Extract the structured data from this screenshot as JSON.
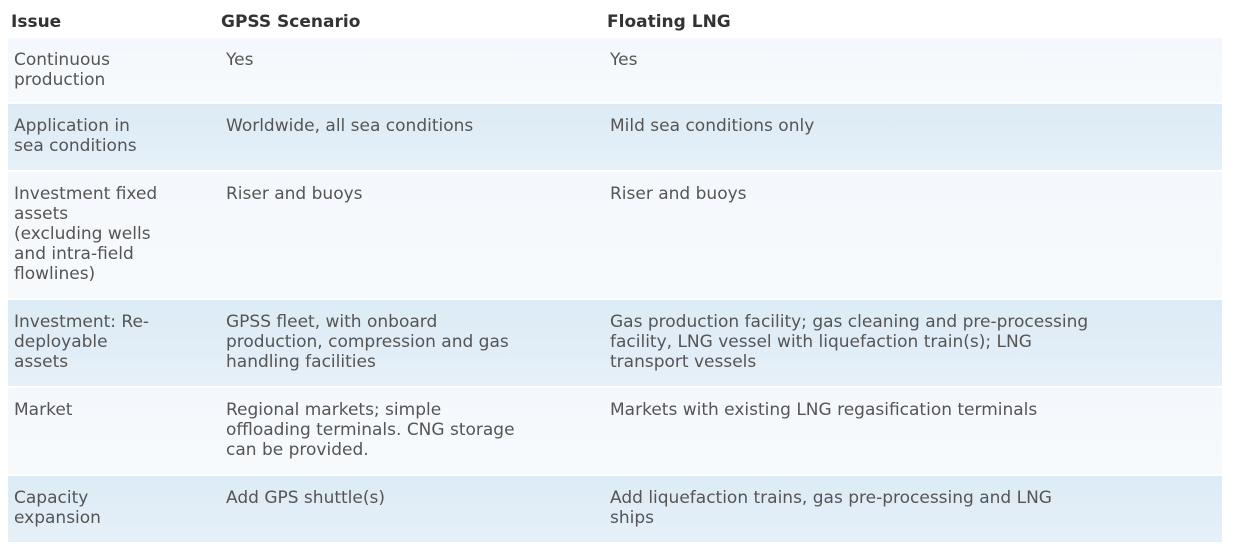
{
  "table": {
    "headers": {
      "issue": "Issue",
      "gpss": "GPSS Scenario",
      "flng": "Floating LNG"
    },
    "rows": [
      {
        "issue": "Continuous\nproduction",
        "gpss": "Yes",
        "flng": "Yes"
      },
      {
        "issue": "Application in\nsea conditions",
        "gpss": "Worldwide, all sea conditions",
        "flng": "Mild sea conditions only"
      },
      {
        "issue": "Investment fixed\nassets\n(excluding wells\nand intra-field\nflowlines)",
        "gpss": "Riser and buoys",
        "flng": "Riser and buoys"
      },
      {
        "issue": "Investment: Re-\ndeployable\nassets",
        "gpss": "GPSS fleet, with onboard\nproduction, compression and gas\nhandling facilities",
        "flng": "Gas production facility; gas cleaning and pre-processing\nfacility, LNG vessel with liquefaction train(s); LNG\ntransport vessels"
      },
      {
        "issue": "Market",
        "gpss": "Regional markets; simple\noffloading terminals. CNG storage\ncan be provided.",
        "flng": "Markets with existing LNG regasification terminals"
      },
      {
        "issue": "Capacity\nexpansion",
        "gpss": "Add GPS shuttle(s)",
        "flng": "Add liquefaction trains, gas pre-processing and LNG\nships"
      }
    ]
  },
  "colors": {
    "row_light": "#f4f8fc",
    "row_blue": "#dcebf6",
    "header_text": "#333333",
    "body_text": "#555555"
  }
}
